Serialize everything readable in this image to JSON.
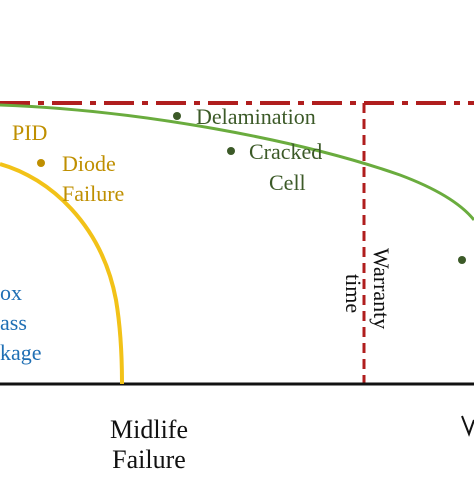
{
  "labels": {
    "pid": "PID",
    "diode_line1": "Diode",
    "diode_line2": "Failure",
    "delamination": "Delamination",
    "cracked_line1": "Cracked",
    "cracked_line2": "Cell",
    "box_line1": "ox",
    "box_line2": "ass",
    "box_line3": "kage",
    "warranty_line1": "Warranty",
    "warranty_line2": "time",
    "midlife_line1": "Midlife",
    "midlife_line2": "Failure"
  },
  "colors": {
    "green": "#6aac3e",
    "gold": "#f2c218",
    "goldText": "#bf8f00",
    "darkGreen": "#3c5a28",
    "blue": "#1f6fb4",
    "red": "#b01e1e",
    "black": "#111111"
  }
}
